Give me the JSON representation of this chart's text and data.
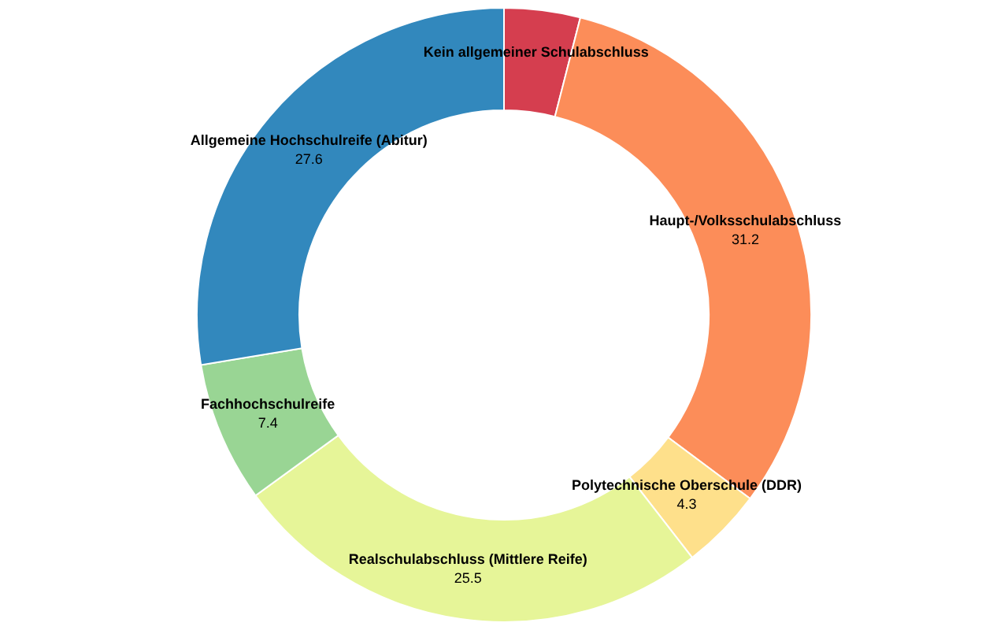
{
  "chart_data": {
    "type": "donut",
    "categories": [
      "Kein allgemeiner Schulabschluss",
      "Haupt-/Volksschulabschluss",
      "Polytechnische Oberschule (DDR)",
      "Realschulabschluss (Mittlere Reife)",
      "Fachhochschulreife",
      "Allgemeine Hochschulreife (Abitur)"
    ],
    "values": [
      4.0,
      31.2,
      4.3,
      25.5,
      7.4,
      27.6
    ],
    "value_labels": [
      null,
      "31.2",
      "4.3",
      "25.5",
      "7.4",
      "27.6"
    ],
    "colors": [
      "#d53e4f",
      "#fc8d59",
      "#fee08b",
      "#e6f598",
      "#99d594",
      "#3288bd"
    ]
  }
}
